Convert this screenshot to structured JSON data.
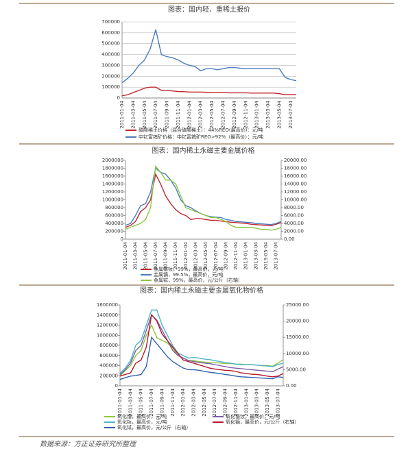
{
  "chart_data": [
    {
      "type": "line",
      "title": "图表：国内轻、重稀土报价",
      "grid": true,
      "categories": [
        "2011-01-04",
        null,
        "2011-03-04",
        null,
        "2011-05-04",
        null,
        "2011-07-04",
        null,
        "2011-09-04",
        null,
        "2011-11-04",
        null,
        "2012-01-04",
        null,
        "2012-03-04",
        null,
        "2012-05-04",
        null,
        "2012-07-04",
        null,
        "2012-09-04",
        null,
        "2012-11-04",
        null,
        "2013-01-04",
        null,
        "2013-03-04",
        null,
        "2013-05-04",
        null,
        "2013-07-04",
        null
      ],
      "ylim": [
        0,
        700000
      ],
      "yticks": [
        0,
        100000,
        200000,
        300000,
        400000,
        500000,
        600000,
        700000
      ],
      "series": [
        {
          "name": "碳酸稀土价格（混合碳酸稀土）：44%REO(最高价)：元/吨",
          "color": "#c0272d",
          "values": [
            20000,
            30000,
            50000,
            70000,
            90000,
            100000,
            100000,
            70000,
            70000,
            65000,
            60000,
            58000,
            55000,
            55000,
            55000,
            52000,
            50000,
            50000,
            50000,
            48000,
            48000,
            48000,
            48000,
            45000,
            45000,
            45000,
            45000,
            45000,
            40000,
            30000,
            30000,
            30000
          ]
        },
        {
          "name": "中钇富铕矿价格：中钇富铕矿REO>92%（最高价）：元/吨",
          "color": "#4a7bc0",
          "values": [
            140000,
            180000,
            230000,
            300000,
            350000,
            450000,
            630000,
            400000,
            380000,
            370000,
            350000,
            320000,
            300000,
            290000,
            250000,
            270000,
            270000,
            260000,
            270000,
            280000,
            280000,
            275000,
            270000,
            270000,
            270000,
            270000,
            270000,
            270000,
            270000,
            190000,
            170000,
            160000
          ]
        }
      ]
    },
    {
      "type": "line",
      "title": "图表：国内稀土永磁主要金属价格",
      "grid": false,
      "categories": [
        "2011-01-04",
        null,
        "2011-03-04",
        null,
        "2011-05-04",
        null,
        "2011-07-04",
        null,
        "2011-09-04",
        null,
        "2011-11-04",
        null,
        "2012-01-04",
        null,
        "2012-03-04",
        null,
        "2012-05-04",
        null,
        "2012-07-04",
        null,
        "2012-09-04",
        null,
        "2012-11-04",
        null,
        "2013-01-04",
        null,
        "2013-03-04",
        null,
        "2013-05-04",
        null,
        "2013-07-04",
        null
      ],
      "ylim": [
        0,
        2000000
      ],
      "yticks": [
        0,
        200000,
        400000,
        600000,
        800000,
        1000000,
        1200000,
        1400000,
        1600000,
        1800000,
        2000000
      ],
      "y2lim": [
        0,
        20000
      ],
      "y2ticks": [
        {
          "value": 0,
          "label": "0.00"
        },
        {
          "value": 2000,
          "label": "2000.00"
        },
        {
          "value": 4000,
          "label": "4000.00"
        },
        {
          "value": 6000,
          "label": "6000.00"
        },
        {
          "value": 8000,
          "label": "8000.00"
        },
        {
          "value": 10000,
          "label": "10000.00"
        },
        {
          "value": 12000,
          "label": "12000.00"
        },
        {
          "value": 14000,
          "label": "14000.00"
        },
        {
          "value": 16000,
          "label": "16000.00"
        },
        {
          "value": 18000,
          "label": "18000.00"
        },
        {
          "value": 20000,
          "label": "20000.00"
        }
      ],
      "series": [
        {
          "name": "金属镨钕，99%，最高价，元/吨",
          "color": "#c0272d",
          "values": [
            300000,
            350000,
            450000,
            700000,
            800000,
            1000000,
            1650000,
            1400000,
            1100000,
            900000,
            750000,
            650000,
            600000,
            500000,
            520000,
            520000,
            500000,
            480000,
            480000,
            460000,
            450000,
            430000,
            420000,
            410000,
            400000,
            380000,
            370000,
            360000,
            350000,
            340000,
            380000,
            420000
          ]
        },
        {
          "name": "金属镝，99.5%，最高价，元/吨",
          "color": "#4a7bc0",
          "values": [
            350000,
            400000,
            600000,
            850000,
            900000,
            1200000,
            1800000,
            1700000,
            1650000,
            1500000,
            1300000,
            1000000,
            850000,
            800000,
            720000,
            650000,
            600000,
            570000,
            560000,
            550000,
            500000,
            480000,
            450000,
            440000,
            430000,
            420000,
            400000,
            390000,
            380000,
            370000,
            400000,
            450000
          ]
        },
        {
          "name": "金属铽，99%，最高价，元/公斤（右轴）",
          "color": "#8dc63f",
          "axis": "y2",
          "values": [
            2500,
            3000,
            3500,
            4000,
            5000,
            8000,
            18500,
            17000,
            15000,
            15000,
            14000,
            11000,
            8000,
            7500,
            7000,
            6500,
            6000,
            5500,
            5500,
            5000,
            4500,
            3500,
            3000,
            3000,
            3000,
            3000,
            2800,
            2500,
            2500,
            2300,
            2500,
            3000
          ]
        }
      ]
    },
    {
      "type": "line",
      "title": "图表：国内稀土永磁主要金属氧化物价格",
      "grid": false,
      "categories": [
        "2011-01-04",
        null,
        "2011-03-04",
        null,
        "2011-05-04",
        null,
        "2011-07-04",
        null,
        "2011-09-04",
        null,
        "2011-11-04",
        null,
        "2012-01-04",
        null,
        "2012-03-04",
        null,
        "2012-05-04",
        null,
        "2012-07-04",
        null,
        "2012-09-04",
        null,
        "2012-11-04",
        null,
        "2013-01-04",
        null,
        "2013-03-04",
        null,
        "2013-05-04",
        null,
        "2013-07-04",
        null
      ],
      "ylim": [
        0,
        1600000
      ],
      "yticks": [
        0,
        200000,
        400000,
        600000,
        800000,
        1000000,
        1200000,
        1400000,
        1600000
      ],
      "y2lim": [
        0,
        25000
      ],
      "y2ticks": [
        {
          "value": 0,
          "label": "0.00"
        },
        {
          "value": 5000,
          "label": "5000.00"
        },
        {
          "value": 10000,
          "label": "10000.00"
        },
        {
          "value": 15000,
          "label": "15000.00"
        },
        {
          "value": 20000,
          "label": "20000.00"
        },
        {
          "value": 25000,
          "label": "25000.00"
        }
      ],
      "series": [
        {
          "name": "氧化镨，最高价，元/吨",
          "color": "#8dc63f",
          "values": [
            200000,
            300000,
            400000,
            600000,
            700000,
            1000000,
            1200000,
            950000,
            900000,
            850000,
            750000,
            600000,
            550000,
            500000,
            500000,
            480000,
            470000,
            460000,
            460000,
            450000,
            440000,
            440000,
            430000,
            430000,
            420000,
            420000,
            410000,
            400000,
            400000,
            390000,
            450000,
            520000
          ]
        },
        {
          "name": "氧化钕，最高价，元/吨",
          "color": "#4fb3c9",
          "values": [
            250000,
            350000,
            500000,
            800000,
            900000,
            1200000,
            1500000,
            1500000,
            1200000,
            1000000,
            800000,
            650000,
            600000,
            550000,
            560000,
            550000,
            530000,
            520000,
            500000,
            480000,
            460000,
            450000,
            430000,
            420000,
            420000,
            420000,
            410000,
            400000,
            390000,
            380000,
            420000,
            450000
          ]
        },
        {
          "name": "氧化铽，最高价，元/公斤（右轴）",
          "color": "#2f5fb0",
          "axis": "y2",
          "values": [
            2000,
            2500,
            3000,
            3200,
            3500,
            6000,
            15000,
            13000,
            11000,
            9000,
            7500,
            6500,
            5500,
            5000,
            5000,
            4800,
            4500,
            4200,
            4000,
            3800,
            3500,
            3300,
            3000,
            2800,
            2700,
            2600,
            2500,
            2400,
            2300,
            2200,
            2800,
            2600
          ]
        },
        {
          "name": "氧化镨钕，最高价，元/吨",
          "color": "#7b5ea7",
          "values": [
            220000,
            320000,
            450000,
            700000,
            800000,
            1100000,
            1400000,
            1300000,
            1100000,
            900000,
            700000,
            600000,
            550000,
            500000,
            480000,
            460000,
            450000,
            440000,
            420000,
            400000,
            380000,
            360000,
            350000,
            340000,
            330000,
            320000,
            310000,
            300000,
            290000,
            280000,
            330000,
            380000
          ]
        },
        {
          "name": "氧化镝，最高价，元/公斤（右轴）",
          "color": "#b5172b",
          "axis": "y2",
          "values": [
            3000,
            3500,
            4000,
            7000,
            8000,
            12000,
            22000,
            20000,
            16000,
            14000,
            12000,
            10000,
            8000,
            7500,
            7000,
            6500,
            6000,
            5500,
            5200,
            5000,
            4800,
            4700,
            4500,
            4000,
            3800,
            3600,
            3500,
            3300,
            3000,
            2800,
            3000,
            3800
          ]
        }
      ]
    }
  ],
  "source": "数据来源：方正证券研究所整理"
}
